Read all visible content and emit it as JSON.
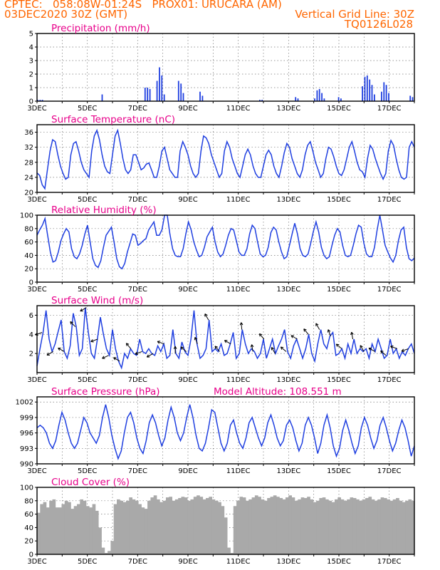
{
  "header": {
    "line1_left": "CPTEC:   058:08W-01:24S   PROX01: URUCARA (AM)",
    "line2_left": "03DEC2020 30Z (GMT)",
    "line2_right": "Vertical Grid Line: 30Z",
    "line3_right": "TQ0126L028"
  },
  "date_ticks": [
    "3DEC",
    "5DEC",
    "7DEC",
    "9DEC",
    "11DEC",
    "13DEC",
    "15DEC",
    "17DEC"
  ],
  "colors": {
    "line": "#1f3fe0",
    "bar": "#1f3fe0",
    "cloud": "#a9a9a9",
    "header": "#ff6600",
    "title": "#e8008a"
  },
  "chart_data": [
    {
      "id": "precip",
      "type": "bar",
      "title": "Precipitation (mm/h)",
      "ylim": [
        0,
        5
      ],
      "yticks": [
        0,
        1,
        2,
        3,
        4,
        5
      ],
      "x_range_days": [
        0,
        15
      ],
      "x_step_hours": 3,
      "values": [
        0.1,
        0.1,
        0.1,
        0,
        0,
        0,
        0,
        0,
        0,
        0,
        0,
        0,
        0,
        0,
        0,
        0,
        0,
        0,
        0,
        0,
        0,
        0,
        0,
        0,
        0,
        0,
        0,
        0.5,
        0,
        0,
        0,
        0,
        0,
        0,
        0,
        0,
        0,
        0,
        0,
        0,
        0,
        0,
        0,
        0,
        0,
        1,
        1,
        0.9,
        0,
        0,
        1.5,
        2.5,
        1.9,
        0.5,
        0,
        0,
        0,
        0,
        0,
        1.5,
        1.3,
        0.6,
        0,
        0,
        0,
        0,
        0,
        0,
        0.7,
        0.4,
        0,
        0,
        0,
        0,
        0,
        0,
        0,
        0,
        0,
        0,
        0,
        0,
        0,
        0,
        0,
        0,
        0,
        0,
        0,
        0,
        0,
        0,
        0,
        0.1,
        0.1,
        0,
        0,
        0,
        0,
        0,
        0,
        0,
        0,
        0,
        0,
        0,
        0,
        0,
        0.3,
        0.2,
        0,
        0,
        0,
        0,
        0,
        0,
        0.2,
        0.8,
        0.9,
        0.6,
        0.2,
        0,
        0,
        0,
        0,
        0,
        0.3,
        0.2,
        0,
        0,
        0,
        0,
        0,
        0,
        0,
        0,
        1.1,
        1.8,
        1.9,
        1.6,
        1.2,
        0.5,
        0,
        0,
        0.7,
        1.4,
        1.2,
        0.6,
        0,
        0,
        0,
        0,
        0,
        0,
        0,
        0,
        0.4,
        0.3
      ]
    },
    {
      "id": "temp",
      "type": "line",
      "title": "Surface Temperature (nC)",
      "ylim": [
        20,
        38
      ],
      "yticks": [
        20,
        24,
        28,
        32,
        36
      ],
      "x_range_days": [
        0,
        15
      ],
      "x_step_hours": 3,
      "values": [
        25.2,
        24.5,
        22.0,
        21.0,
        26,
        31,
        34,
        33.5,
        30,
        27,
        25,
        23.5,
        24,
        30,
        33,
        33.5,
        31,
        28,
        26,
        25,
        24,
        31,
        35,
        36.5,
        34,
        30,
        27,
        25.5,
        25,
        30,
        35,
        36.5,
        33,
        29,
        26,
        25,
        26,
        30,
        30,
        28,
        26,
        26.5,
        27.5,
        27.8,
        26,
        24,
        24,
        27,
        31,
        32,
        29,
        26,
        25,
        24,
        24,
        31,
        33.5,
        32,
        30,
        27,
        25,
        24,
        25,
        31,
        35,
        34.5,
        33,
        30,
        28,
        26,
        24,
        25,
        31,
        33.5,
        32,
        29,
        27,
        25,
        24,
        27,
        30,
        31.5,
        30,
        27,
        25,
        24,
        24,
        27,
        30,
        31.2,
        30,
        27,
        25,
        24,
        27,
        30.5,
        33,
        32,
        29,
        27,
        25,
        24,
        26,
        30,
        32.5,
        33.5,
        31,
        28,
        26,
        24,
        25,
        29,
        32,
        31.5,
        29.5,
        27,
        25,
        24.5,
        26,
        29,
        32,
        33.5,
        31,
        28,
        26,
        25.5,
        24,
        29,
        32.5,
        31.5,
        29,
        27,
        25,
        23.5,
        25,
        31,
        33.8,
        32.5,
        29,
        26,
        24,
        23.5,
        24,
        32,
        33.5,
        32
      ]
    },
    {
      "id": "rh",
      "type": "line",
      "title": "Relative Humidity (%)",
      "ylim": [
        0,
        100
      ],
      "yticks": [
        0,
        20,
        40,
        60,
        80,
        100
      ],
      "x_range_days": [
        0,
        15
      ],
      "x_step_hours": 3,
      "values": [
        70,
        78,
        85,
        95,
        70,
        45,
        30,
        32,
        45,
        62,
        72,
        80,
        75,
        50,
        38,
        35,
        42,
        55,
        72,
        85,
        60,
        35,
        25,
        22,
        32,
        52,
        70,
        76,
        82,
        60,
        35,
        23,
        20,
        28,
        45,
        58,
        72,
        70,
        55,
        58,
        62,
        65,
        78,
        84,
        90,
        70,
        70,
        78,
        100,
        100,
        72,
        50,
        40,
        38,
        38,
        50,
        72,
        90,
        78,
        60,
        48,
        38,
        40,
        52,
        68,
        75,
        82,
        60,
        45,
        38,
        42,
        55,
        70,
        80,
        78,
        62,
        45,
        40,
        40,
        50,
        72,
        85,
        80,
        60,
        42,
        38,
        40,
        52,
        74,
        82,
        78,
        60,
        45,
        35,
        38,
        55,
        72,
        88,
        72,
        50,
        40,
        38,
        42,
        58,
        76,
        90,
        75,
        52,
        40,
        35,
        38,
        55,
        70,
        80,
        75,
        55,
        40,
        38,
        40,
        55,
        72,
        85,
        82,
        58,
        42,
        38,
        38,
        52,
        78,
        100,
        78,
        55,
        45,
        36,
        30,
        40,
        62,
        78,
        82,
        52,
        35,
        32,
        36
      ]
    },
    {
      "id": "wind",
      "type": "line",
      "title": "Surface Wind (m/s)",
      "ylim": [
        0,
        7
      ],
      "yticks": [
        2,
        4,
        6
      ],
      "x_range_days": [
        0,
        15
      ],
      "x_step_hours": 3,
      "values": [
        0.7,
        2.5,
        4.2,
        6.5,
        3.5,
        2.2,
        3.0,
        4.3,
        5.5,
        2.2,
        1.5,
        2.8,
        6.2,
        4.8,
        1.8,
        2.5,
        6.8,
        4.2,
        2.0,
        1.5,
        3.5,
        5.8,
        4.0,
        2.5,
        1.8,
        4.5,
        2.5,
        1.2,
        0.5,
        2.0,
        1.5,
        2.5,
        2.0,
        1.8,
        3.5,
        2.2,
        2.0,
        2.5,
        2.0,
        1.8,
        2.8,
        2.2,
        3.0,
        1.5,
        1.8,
        4.5,
        2.0,
        1.5,
        3.2,
        2.2,
        1.8,
        3.5,
        6.5,
        3.0,
        1.5,
        1.8,
        2.5,
        5.5,
        2.2,
        2.5,
        2.2,
        3.0,
        1.8,
        2.0,
        3.0,
        4.2,
        1.5,
        2.0,
        4.5,
        3.0,
        2.0,
        2.5,
        2.2,
        1.5,
        2.0,
        3.5,
        1.5,
        2.5,
        3.5,
        2.0,
        2.8,
        3.5,
        4.5,
        2.2,
        1.5,
        2.8,
        3.5,
        2.5,
        1.5,
        2.5,
        4.0,
        2.0,
        1.2,
        3.0,
        4.5,
        3.0,
        2.5,
        3.8,
        4.2,
        1.8,
        2.0,
        2.5,
        1.5,
        3.0,
        2.0,
        3.5,
        2.0,
        2.5,
        2.2,
        2.5,
        1.5,
        3.0,
        2.2,
        3.5,
        2.5,
        1.5,
        1.8,
        3.5,
        2.0,
        2.5,
        1.5,
        2.2,
        1.8,
        2.5,
        3.0,
        2.0
      ]
    },
    {
      "id": "pressure",
      "type": "line",
      "title": "Surface Pressure (hPa)",
      "ylim": [
        990,
        1003
      ],
      "yticks": [
        990,
        993,
        996,
        999,
        1002
      ],
      "annotation": "Model Altitude: 108.551  m",
      "x_range_days": [
        0,
        15
      ],
      "x_step_hours": 3,
      "values": [
        997,
        997.5,
        997,
        996,
        994,
        993,
        994.5,
        997.5,
        1000,
        998.5,
        996,
        994,
        993,
        994,
        996.5,
        999,
        998,
        996,
        995,
        994,
        995.5,
        999,
        1001.5,
        999,
        995.5,
        993,
        991,
        992.5,
        996,
        999,
        1000,
        998,
        995,
        993,
        992,
        994.5,
        998,
        999.5,
        998,
        995.5,
        993.5,
        995,
        998.5,
        1001,
        999,
        996,
        994.5,
        996,
        999,
        1001.5,
        999,
        995.5,
        993,
        992.5,
        994,
        997,
        1000.5,
        1000,
        997,
        994,
        992.5,
        994,
        997.5,
        998.5,
        996,
        994,
        993,
        995,
        998,
        999,
        997,
        995,
        993.5,
        995,
        998,
        999.5,
        997.5,
        995,
        993.5,
        994.5,
        997.5,
        998.5,
        997,
        994.5,
        992.5,
        994,
        997.5,
        999,
        997.5,
        995,
        992,
        994,
        997.5,
        999.5,
        997,
        993.5,
        991.5,
        993,
        996.5,
        998.5,
        996.5,
        994,
        992,
        993.5,
        997,
        999,
        997.5,
        995,
        993,
        994.5,
        997.5,
        999,
        997,
        994.5,
        992.5,
        994,
        996.5,
        998.5,
        997,
        994.5,
        991.5,
        993.5
      ]
    },
    {
      "id": "cloud",
      "type": "bar",
      "title": "Cloud Cover (%)",
      "ylim": [
        0,
        100
      ],
      "yticks": [
        0,
        20,
        40,
        60,
        80,
        100
      ],
      "x_range_days": [
        0,
        15
      ],
      "x_step_hours": 3,
      "values": [
        62,
        75,
        78,
        70,
        80,
        82,
        70,
        70,
        75,
        80,
        78,
        68,
        72,
        75,
        82,
        80,
        72,
        70,
        75,
        65,
        40,
        10,
        2,
        5,
        20,
        75,
        82,
        80,
        78,
        80,
        85,
        82,
        80,
        75,
        70,
        68,
        80,
        85,
        88,
        82,
        78,
        80,
        85,
        86,
        80,
        82,
        84,
        86,
        85,
        80,
        82,
        86,
        88,
        86,
        82,
        84,
        86,
        82,
        80,
        78,
        72,
        55,
        10,
        2,
        72,
        80,
        86,
        85,
        80,
        82,
        85,
        88,
        86,
        82,
        80,
        84,
        86,
        88,
        86,
        84,
        82,
        85,
        88,
        85,
        80,
        82,
        85,
        84,
        86,
        82,
        78,
        80,
        84,
        85,
        82,
        80,
        78,
        82,
        85,
        82,
        80,
        82,
        85,
        84,
        82,
        80,
        82,
        84,
        86,
        82,
        80,
        82,
        85,
        84,
        82,
        80,
        82,
        84,
        80,
        78,
        80,
        82,
        80
      ]
    }
  ]
}
